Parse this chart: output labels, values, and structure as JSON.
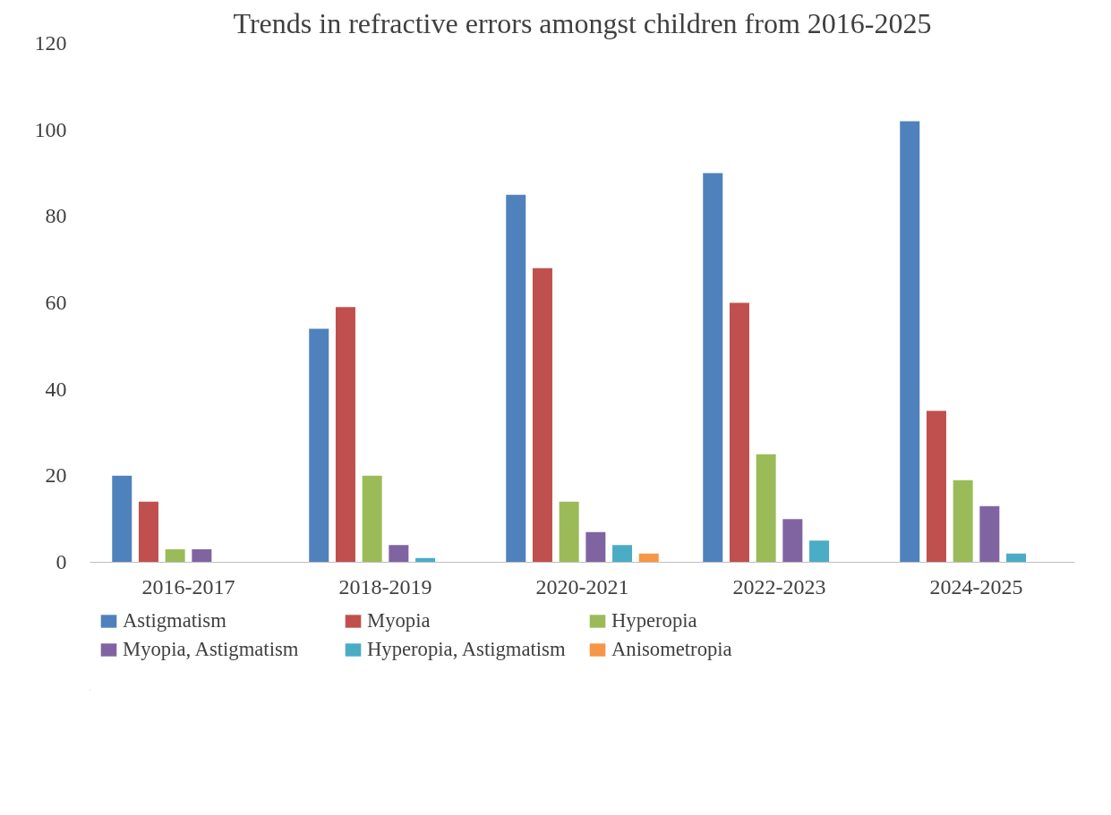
{
  "chart_data": {
    "type": "bar",
    "title": "Trends in refractive errors amongst children from 2016-2025",
    "categories": [
      "2016-2017",
      "2018-2019",
      "2020-2021",
      "2022-2023",
      "2024-2025"
    ],
    "series": [
      {
        "name": "Astigmatism",
        "color": "#4f81bd",
        "values": [
          20,
          54,
          85,
          90,
          102
        ]
      },
      {
        "name": "Myopia",
        "color": "#c0504d",
        "values": [
          14,
          59,
          68,
          60,
          35
        ]
      },
      {
        "name": "Hyperopia",
        "color": "#9bbb59",
        "values": [
          3,
          20,
          14,
          25,
          19
        ]
      },
      {
        "name": "Myopia, Astigmatism",
        "color": "#8064a2",
        "values": [
          3,
          4,
          7,
          10,
          13
        ]
      },
      {
        "name": "Hyperopia, Astigmatism",
        "color": "#4bacc6",
        "values": [
          0,
          1,
          4,
          5,
          2
        ]
      },
      {
        "name": "Anisometropia",
        "color": "#f79646",
        "values": [
          0,
          0,
          2,
          0,
          0
        ]
      }
    ],
    "ylim": [
      0,
      120
    ],
    "yticks": [
      0,
      20,
      40,
      60,
      80,
      100,
      120
    ],
    "grid": false,
    "legend": "bottom"
  }
}
